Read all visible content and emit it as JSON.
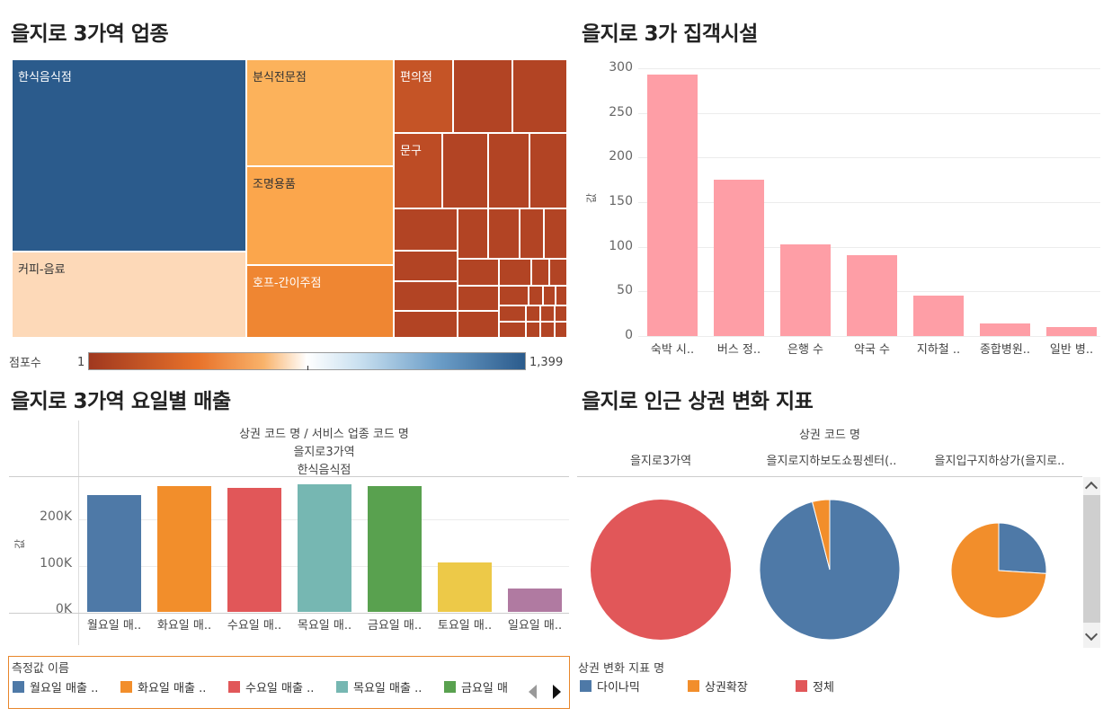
{
  "treemap": {
    "title": "을지로 3가역 업종",
    "tiles": [
      {
        "label": "한식음식점",
        "color": "#2b5b8c",
        "text_color": "#ffffff"
      },
      {
        "label": "커피-음료",
        "color": "#fdd9b8",
        "text_color": "#333333"
      },
      {
        "label": "분식전문점",
        "color": "#fcb25b",
        "text_color": "#333333"
      },
      {
        "label": "조명용품",
        "color": "#fba64c",
        "text_color": "#333333"
      },
      {
        "label": "호프-간이주점",
        "color": "#ef8632",
        "text_color": "#ffffff"
      },
      {
        "label": "편의점",
        "color": "#c55426",
        "text_color": "#ffffff"
      },
      {
        "label": "문구",
        "color": "#bd4c25",
        "text_color": "#ffffff"
      }
    ],
    "other_tile_color": "#b24424",
    "legend_label": "점포수",
    "legend_min": "1",
    "legend_max": "1,399"
  },
  "facilities": {
    "title": "을지로 3가 집객시설",
    "y_label": "값",
    "y_ticks": [
      "300",
      "250",
      "200",
      "150",
      "100",
      "50",
      "0"
    ],
    "bar_color": "#fe9ea6",
    "categories": [
      "숙박 시..",
      "버스 정..",
      "은행 수",
      "약국 수",
      "지하철 ..",
      "종합병원..",
      "일반 병.."
    ],
    "values": [
      293,
      175,
      103,
      91,
      45,
      14,
      10
    ],
    "ylim": [
      0,
      300
    ]
  },
  "sales": {
    "title": "을지로 3가역 요일별 매출",
    "header_line1": "상권 코드 명 / 서비스 업종 코드 명",
    "header_line2": "을지로3가역",
    "header_line3": "한식음식점",
    "y_label": "값",
    "y_ticks": [
      "200K",
      "100K",
      "0K"
    ],
    "categories": [
      "월요일 매..",
      "화요일 매..",
      "수요일 매..",
      "목요일 매..",
      "금요일 매..",
      "토요일 매..",
      "일요일 매.."
    ],
    "values": [
      252000,
      272000,
      267000,
      276000,
      271000,
      106000,
      51000
    ],
    "colors": [
      "#4e79a7",
      "#f28e2b",
      "#e15759",
      "#76b7b2",
      "#59a14f",
      "#edc948",
      "#b07aa1"
    ],
    "legend_title": "측정값 이름",
    "legend_items": [
      "월요일 매출 ..",
      "화요일 매출 ..",
      "수요일 매출 ..",
      "목요일 매출 ..",
      "금요일 매"
    ]
  },
  "change": {
    "title": "을지로 인근 상권 변화 지표",
    "header": "상권 코드 명",
    "columns": [
      "을지로3가역",
      "을지로지하보도쇼핑센터(..",
      "을지입구지하상가(을지로.."
    ],
    "legend_title": "상권 변화 지표 명",
    "legend_items": [
      {
        "label": "다이나믹",
        "color": "#4e79a7"
      },
      {
        "label": "상권확장",
        "color": "#f28e2b"
      },
      {
        "label": "정체",
        "color": "#e15759"
      }
    ]
  },
  "chart_data": [
    {
      "type": "bar",
      "title": "을지로 3가 집객시설",
      "ylabel": "값",
      "categories": [
        "숙박 시..",
        "버스 정..",
        "은행 수",
        "약국 수",
        "지하철 ..",
        "종합병원..",
        "일반 병.."
      ],
      "values": [
        293,
        175,
        103,
        91,
        45,
        14,
        10
      ],
      "ylim": [
        0,
        300
      ]
    },
    {
      "type": "bar",
      "title": "을지로 3가역 요일별 매출",
      "ylabel": "값",
      "categories": [
        "월요일 매..",
        "화요일 매..",
        "수요일 매..",
        "목요일 매..",
        "금요일 매..",
        "토요일 매..",
        "일요일 매.."
      ],
      "values": [
        252000,
        272000,
        267000,
        276000,
        271000,
        106000,
        51000
      ]
    },
    {
      "type": "pie",
      "title": "을지로 인근 상권 변화 지표",
      "pies": [
        {
          "name": "을지로3가역",
          "slices": [
            {
              "label": "정체",
              "value": 1.0
            }
          ]
        },
        {
          "name": "을지로지하보도쇼핑센터(..",
          "slices": [
            {
              "label": "다이나믹",
              "value": 0.96
            },
            {
              "label": "상권확장",
              "value": 0.04
            }
          ]
        },
        {
          "name": "을지입구지하상가(을지로..",
          "slices": [
            {
              "label": "다이나믹",
              "value": 0.26
            },
            {
              "label": "상권확장",
              "value": 0.74
            }
          ]
        }
      ]
    }
  ]
}
